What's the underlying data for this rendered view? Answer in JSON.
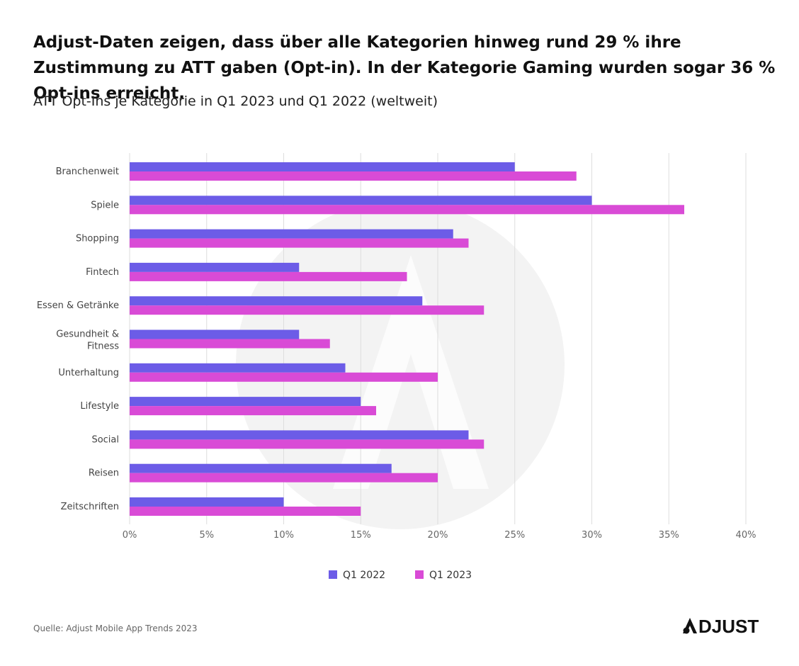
{
  "header": {
    "title": "Adjust-Daten zeigen, dass über alle Kategorien hinweg rund 29 % ihre Zustimmung zu ATT gaben (Opt-in). In der Kategorie Gaming wurden sogar 36 % Opt-ins erreicht.",
    "subtitle": "ATT Opt-Ins je Kategorie in Q1 2023 und Q1 2022 (weltweit)"
  },
  "footer": {
    "source": "Quelle: Adjust Mobile App Trends 2023",
    "logo_text": "ADJUST"
  },
  "colors": {
    "q1_2022": "#6c5ce7",
    "q1_2023": "#d94bd6",
    "grid": "#dddddd",
    "watermark": "#f3f3f3"
  },
  "chart_data": {
    "type": "bar",
    "orientation": "horizontal",
    "categories": [
      "Branchenweit",
      "Spiele",
      "Shopping",
      "Fintech",
      "Essen & Getränke",
      "Gesundheit & Fitness",
      "Unterhaltung",
      "Lifestyle",
      "Social",
      "Reisen",
      "Zeitschriften"
    ],
    "series": [
      {
        "name": "Q1 2022",
        "values": [
          25,
          30,
          21,
          11,
          19,
          11,
          14,
          15,
          22,
          17,
          10
        ]
      },
      {
        "name": "Q1 2023",
        "values": [
          29,
          36,
          22,
          18,
          23,
          13,
          20,
          16,
          23,
          20,
          15
        ]
      }
    ],
    "xlim": [
      0,
      40
    ],
    "xticks": [
      "0%",
      "5%",
      "10%",
      "15%",
      "20%",
      "25%",
      "30%",
      "35%",
      "40%"
    ],
    "grid": "vertical",
    "legend_position": "bottom-center"
  }
}
